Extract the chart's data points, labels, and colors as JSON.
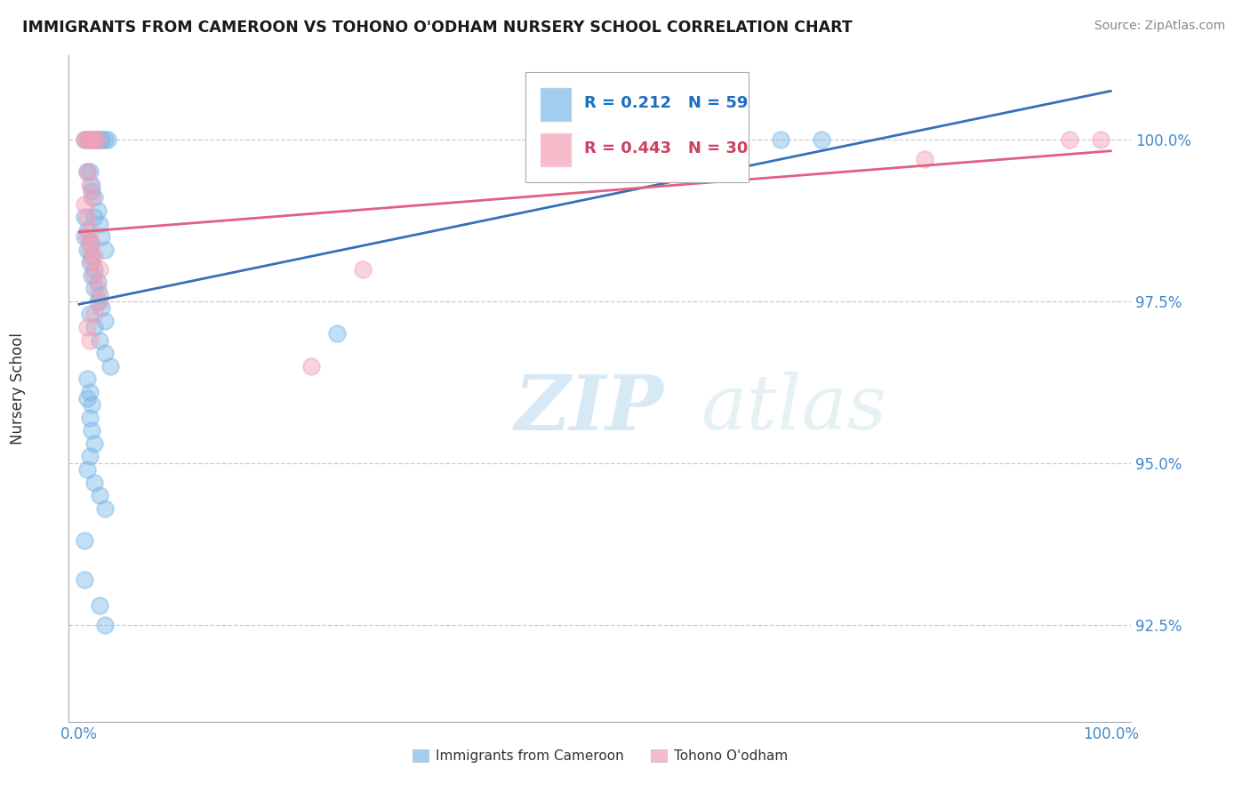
{
  "title": "IMMIGRANTS FROM CAMEROON VS TOHONO O'ODHAM NURSERY SCHOOL CORRELATION CHART",
  "source": "Source: ZipAtlas.com",
  "ylabel": "Nursery School",
  "ytick_values": [
    92.5,
    95.0,
    97.5,
    100.0
  ],
  "ytick_labels": [
    "92.5%",
    "95.0%",
    "97.5%",
    "100.0%"
  ],
  "xlim": [
    -0.01,
    1.02
  ],
  "ylim": [
    91.0,
    101.3
  ],
  "blue_R": 0.212,
  "blue_N": 59,
  "pink_R": 0.443,
  "pink_N": 30,
  "blue_color": "#7bb8e8",
  "pink_color": "#f4a0b5",
  "blue_line_color": "#3570b8",
  "pink_line_color": "#e06080",
  "watermark_zip": "ZIP",
  "watermark_atlas": "atlas",
  "background_color": "#ffffff",
  "legend_label_blue": "Immigrants from Cameroon",
  "legend_label_pink": "Tohono O'odham",
  "blue_scatter_x": [
    0.005,
    0.008,
    0.01,
    0.012,
    0.015,
    0.018,
    0.02,
    0.022,
    0.025,
    0.028,
    0.008,
    0.01,
    0.012,
    0.015,
    0.018,
    0.02,
    0.022,
    0.025,
    0.012,
    0.015,
    0.005,
    0.008,
    0.01,
    0.012,
    0.015,
    0.018,
    0.02,
    0.022,
    0.025,
    0.005,
    0.008,
    0.01,
    0.012,
    0.015,
    0.018,
    0.01,
    0.015,
    0.02,
    0.025,
    0.03,
    0.008,
    0.01,
    0.012,
    0.008,
    0.01,
    0.012,
    0.015,
    0.01,
    0.008,
    0.015,
    0.02,
    0.025,
    0.005,
    0.005,
    0.02,
    0.025,
    0.25,
    0.68,
    0.72
  ],
  "blue_scatter_y": [
    100.0,
    100.0,
    100.0,
    100.0,
    100.0,
    100.0,
    100.0,
    100.0,
    100.0,
    100.0,
    99.5,
    99.5,
    99.3,
    99.1,
    98.9,
    98.7,
    98.5,
    98.3,
    99.2,
    98.8,
    98.8,
    98.6,
    98.4,
    98.2,
    98.0,
    97.8,
    97.6,
    97.4,
    97.2,
    98.5,
    98.3,
    98.1,
    97.9,
    97.7,
    97.5,
    97.3,
    97.1,
    96.9,
    96.7,
    96.5,
    96.3,
    96.1,
    95.9,
    96.0,
    95.7,
    95.5,
    95.3,
    95.1,
    94.9,
    94.7,
    94.5,
    94.3,
    93.8,
    93.2,
    92.8,
    92.5,
    97.0,
    100.0,
    100.0
  ],
  "pink_scatter_x": [
    0.005,
    0.008,
    0.01,
    0.012,
    0.015,
    0.018,
    0.008,
    0.01,
    0.012,
    0.005,
    0.008,
    0.01,
    0.012,
    0.015,
    0.02,
    0.008,
    0.01,
    0.012,
    0.015,
    0.018,
    0.02,
    0.015,
    0.008,
    0.01,
    0.225,
    0.275,
    0.48,
    0.82,
    0.96,
    0.99
  ],
  "pink_scatter_y": [
    100.0,
    100.0,
    100.0,
    100.0,
    100.0,
    100.0,
    99.5,
    99.3,
    99.1,
    99.0,
    98.8,
    98.6,
    98.4,
    98.2,
    98.0,
    98.5,
    98.3,
    98.1,
    97.9,
    97.7,
    97.5,
    97.3,
    97.1,
    96.9,
    96.5,
    98.0,
    99.8,
    99.7,
    100.0,
    100.0
  ]
}
